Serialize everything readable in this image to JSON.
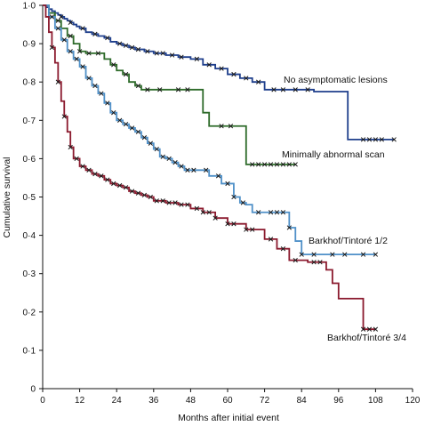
{
  "chart_data": {
    "type": "line",
    "step": true,
    "title": "",
    "xlabel": "Months after initial event",
    "ylabel": "Cumulative survival",
    "xlim": [
      0,
      120
    ],
    "ylim": [
      0,
      1.0
    ],
    "xticks": [
      "0",
      "12",
      "24",
      "36",
      "48",
      "60",
      "72",
      "84",
      "96",
      "108",
      "120"
    ],
    "yticks": [
      "0",
      "0·1",
      "0·2",
      "0·3",
      "0·4",
      "0·5",
      "0·6",
      "0·7",
      "0·8",
      "0·9",
      "1·0"
    ],
    "grid": false,
    "legend": "none",
    "series": [
      {
        "name": "No asymptomatic lesions",
        "color": "#1f3f8c",
        "x": [
          0,
          1,
          2,
          3,
          4,
          5,
          6,
          7,
          8,
          9,
          10,
          11,
          12,
          14,
          16,
          18,
          20,
          22,
          24,
          26,
          28,
          30,
          33,
          36,
          40,
          44,
          48,
          52,
          56,
          60,
          64,
          68,
          72,
          80,
          88,
          96,
          99,
          100,
          104,
          110,
          114
        ],
        "y": [
          1.0,
          0.995,
          0.99,
          0.985,
          0.98,
          0.975,
          0.97,
          0.965,
          0.96,
          0.955,
          0.95,
          0.945,
          0.94,
          0.93,
          0.925,
          0.92,
          0.915,
          0.905,
          0.9,
          0.895,
          0.89,
          0.885,
          0.88,
          0.875,
          0.87,
          0.865,
          0.86,
          0.845,
          0.835,
          0.82,
          0.81,
          0.8,
          0.78,
          0.78,
          0.775,
          0.775,
          0.65,
          0.65,
          0.65,
          0.65,
          0.65
        ],
        "censored": [
          6,
          9,
          13,
          17,
          21,
          25,
          27,
          29,
          31,
          34,
          37,
          39,
          42,
          45,
          50,
          54,
          58,
          62,
          66,
          70,
          75,
          78,
          82,
          86,
          104,
          106,
          108,
          110,
          114
        ]
      },
      {
        "name": "Minimally abnormal scan",
        "color": "#2e6b2a",
        "x": [
          0,
          2,
          4,
          6,
          8,
          10,
          12,
          14,
          16,
          18,
          20,
          22,
          24,
          26,
          28,
          30,
          32,
          36,
          42,
          48,
          52,
          54,
          62,
          66,
          72,
          76,
          80,
          82
        ],
        "y": [
          1.0,
          0.98,
          0.96,
          0.94,
          0.92,
          0.9,
          0.88,
          0.875,
          0.875,
          0.875,
          0.86,
          0.845,
          0.83,
          0.82,
          0.8,
          0.79,
          0.78,
          0.78,
          0.78,
          0.78,
          0.72,
          0.685,
          0.685,
          0.585,
          0.585,
          0.585,
          0.585,
          0.585
        ],
        "censored": [
          5,
          9,
          12,
          15,
          18,
          23,
          27,
          31,
          34,
          38,
          44,
          47,
          58,
          61,
          68,
          70,
          72,
          74,
          76,
          78,
          80,
          82
        ]
      },
      {
        "name": "Barkhof/Tintoré 1/2",
        "color": "#4f90c8",
        "x": [
          0,
          2,
          4,
          6,
          8,
          10,
          12,
          14,
          16,
          18,
          20,
          22,
          24,
          26,
          28,
          30,
          32,
          34,
          36,
          38,
          40,
          42,
          44,
          46,
          50,
          54,
          58,
          62,
          64,
          66,
          68,
          72,
          80,
          82,
          84,
          92,
          100,
          108
        ],
        "y": [
          1.0,
          0.97,
          0.94,
          0.91,
          0.88,
          0.86,
          0.84,
          0.81,
          0.79,
          0.77,
          0.745,
          0.72,
          0.7,
          0.69,
          0.68,
          0.67,
          0.655,
          0.64,
          0.625,
          0.605,
          0.6,
          0.59,
          0.58,
          0.57,
          0.57,
          0.555,
          0.535,
          0.5,
          0.485,
          0.48,
          0.46,
          0.46,
          0.42,
          0.385,
          0.35,
          0.35,
          0.35,
          0.35
        ],
        "censored": [
          3,
          5,
          7,
          9,
          11,
          13,
          15,
          17,
          19,
          21,
          23,
          25,
          27,
          29,
          31,
          33,
          35,
          37,
          39,
          41,
          43,
          45,
          47,
          49,
          53,
          57,
          60,
          62,
          65,
          70,
          74,
          76,
          78,
          80,
          84,
          88,
          94,
          98,
          104,
          108
        ]
      },
      {
        "name": "Barkhof/Tintoré 3/4",
        "color": "#8b1a2e",
        "x": [
          0,
          1,
          2,
          3,
          4,
          5,
          6,
          7,
          8,
          9,
          10,
          12,
          14,
          16,
          18,
          20,
          22,
          24,
          26,
          28,
          30,
          32,
          34,
          36,
          40,
          44,
          48,
          52,
          56,
          60,
          66,
          72,
          76,
          80,
          86,
          92,
          94,
          96,
          100,
          104,
          108
        ],
        "y": [
          1.0,
          0.97,
          0.93,
          0.89,
          0.85,
          0.8,
          0.75,
          0.71,
          0.67,
          0.63,
          0.6,
          0.58,
          0.57,
          0.56,
          0.555,
          0.545,
          0.535,
          0.53,
          0.525,
          0.515,
          0.51,
          0.505,
          0.5,
          0.49,
          0.485,
          0.48,
          0.47,
          0.46,
          0.445,
          0.43,
          0.415,
          0.39,
          0.365,
          0.335,
          0.33,
          0.31,
          0.275,
          0.235,
          0.235,
          0.155,
          0.155
        ],
        "censored": [
          3,
          5,
          7,
          9,
          11,
          13,
          15,
          17,
          19,
          21,
          23,
          25,
          27,
          29,
          31,
          33,
          35,
          37,
          39,
          41,
          43,
          45,
          47,
          50,
          52,
          54,
          56,
          60,
          62,
          66,
          68,
          74,
          78,
          82,
          88,
          90,
          104,
          106,
          108
        ]
      }
    ],
    "annotations": [
      "No asymptomatic lesions",
      "Minimally abnormal scan",
      "Barkhof/Tintoré 1/2",
      "Barkhof/Tintoré 3/4"
    ]
  }
}
